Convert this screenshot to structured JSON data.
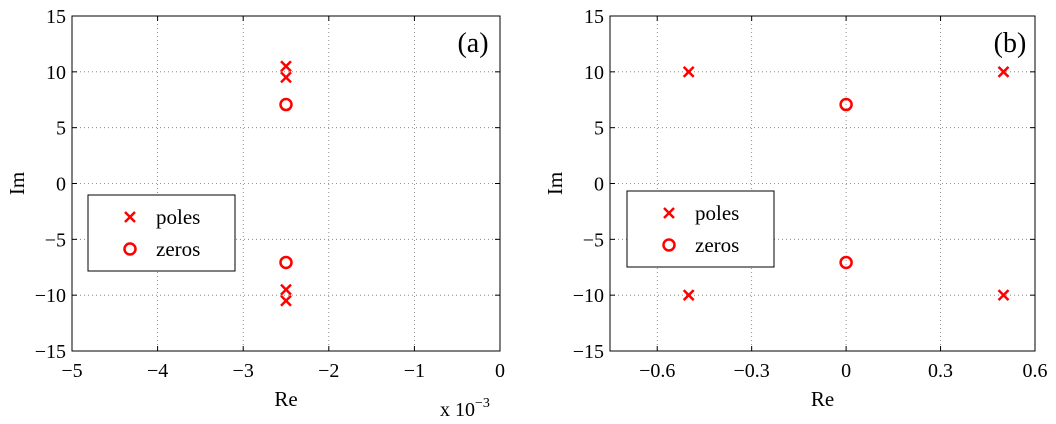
{
  "chart_data": [
    {
      "type": "scatter",
      "panel_label": "(a)",
      "xlabel": "Re",
      "ylabel": "Im",
      "x_multiplier": "x 10",
      "x_multiplier_exp": "−3",
      "xlim": [
        -5,
        0
      ],
      "ylim": [
        -15,
        15
      ],
      "xticks": [
        -5,
        -4,
        -3,
        -2,
        -1,
        0
      ],
      "xtick_labels": [
        "−5",
        "−4",
        "−3",
        "−2",
        "−1",
        "0"
      ],
      "yticks": [
        -15,
        -10,
        -5,
        0,
        5,
        10,
        15
      ],
      "ytick_labels": [
        "−15",
        "−10",
        "−5",
        "0",
        "5",
        "10",
        "15"
      ],
      "grid": true,
      "legend_position": "center-left",
      "series": [
        {
          "name": "poles",
          "marker": "x",
          "color": "#ff0000",
          "points": [
            [
              -2.5,
              10.5
            ],
            [
              -2.5,
              9.5
            ],
            [
              -2.5,
              -9.5
            ],
            [
              -2.5,
              -10.5
            ]
          ]
        },
        {
          "name": "zeros",
          "marker": "o",
          "color": "#ff0000",
          "points": [
            [
              -2.5,
              7.07
            ],
            [
              -2.5,
              -7.07
            ]
          ]
        }
      ]
    },
    {
      "type": "scatter",
      "panel_label": "(b)",
      "xlabel": "Re",
      "ylabel": "Im",
      "xlim": [
        -0.75,
        0.6
      ],
      "ylim": [
        -15,
        15
      ],
      "xticks": [
        -0.6,
        -0.3,
        0,
        0.3,
        0.6
      ],
      "xtick_labels": [
        "−0.6",
        "−0.3",
        "0",
        "0.3",
        "0.6"
      ],
      "yticks": [
        -15,
        -10,
        -5,
        0,
        5,
        10,
        15
      ],
      "ytick_labels": [
        "−15",
        "−10",
        "−5",
        "0",
        "5",
        "10",
        "15"
      ],
      "grid": true,
      "legend_position": "center-left",
      "series": [
        {
          "name": "poles",
          "marker": "x",
          "color": "#ff0000",
          "points": [
            [
              -0.5,
              10
            ],
            [
              0.5,
              10
            ],
            [
              -0.5,
              -10
            ],
            [
              0.5,
              -10
            ]
          ]
        },
        {
          "name": "zeros",
          "marker": "o",
          "color": "#ff0000",
          "points": [
            [
              0,
              7.07
            ],
            [
              0,
              -7.07
            ]
          ]
        }
      ]
    }
  ]
}
